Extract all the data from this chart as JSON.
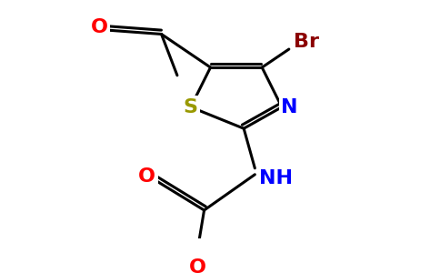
{
  "background_color": "#ffffff",
  "bond_color": "#000000",
  "bond_width": 2.2,
  "atoms": {
    "S": {
      "color": "#999900",
      "fontsize": 16
    },
    "N": {
      "color": "#0000ff",
      "fontsize": 16
    },
    "O": {
      "color": "#ff0000",
      "fontsize": 16
    },
    "Br": {
      "color": "#8b0000",
      "fontsize": 16
    },
    "NH": {
      "color": "#0000ff",
      "fontsize": 16
    }
  },
  "figsize": [
    4.84,
    3.0
  ],
  "dpi": 100
}
